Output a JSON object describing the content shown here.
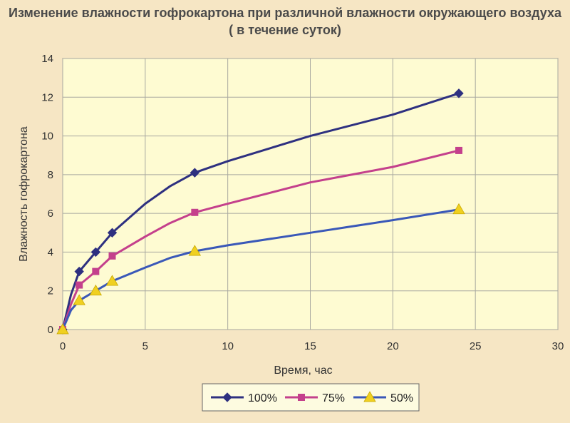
{
  "chart_data": {
    "type": "line",
    "title": "Изменение влажности гофрокартона при различной влажности окружающего воздуха",
    "subtitle": "( в течение суток)",
    "xlabel": "Время, час",
    "ylabel": "Влажность гофрокартона",
    "xlim": [
      0,
      30
    ],
    "ylim": [
      0,
      14
    ],
    "xticks": [
      "0",
      "5",
      "10",
      "15",
      "20",
      "25",
      "30"
    ],
    "yticks": [
      "0",
      "2",
      "4",
      "6",
      "8",
      "10",
      "12",
      "14"
    ],
    "grid": true,
    "legend_position": "bottom",
    "series": [
      {
        "name": "100%",
        "color": "#2e3080",
        "marker": "diamond",
        "markers": [
          [
            0,
            0
          ],
          [
            1,
            3
          ],
          [
            2,
            4
          ],
          [
            3,
            5
          ],
          [
            8,
            8.1
          ],
          [
            24,
            12.2
          ]
        ],
        "curve": [
          [
            0,
            0
          ],
          [
            0.5,
            1.8
          ],
          [
            1,
            3
          ],
          [
            2,
            4
          ],
          [
            3,
            5
          ],
          [
            5,
            6.5
          ],
          [
            6.5,
            7.4
          ],
          [
            8,
            8.1
          ],
          [
            10,
            8.7
          ],
          [
            15,
            10
          ],
          [
            20,
            11.1
          ],
          [
            24,
            12.2
          ]
        ]
      },
      {
        "name": "75%",
        "color": "#c4408c",
        "marker": "square",
        "markers": [
          [
            0,
            0
          ],
          [
            1,
            2.3
          ],
          [
            2,
            3
          ],
          [
            3,
            3.8
          ],
          [
            8,
            6.05
          ],
          [
            24,
            9.25
          ]
        ],
        "curve": [
          [
            0,
            0
          ],
          [
            0.5,
            1.3
          ],
          [
            1,
            2.3
          ],
          [
            2,
            3
          ],
          [
            3,
            3.8
          ],
          [
            5,
            4.8
          ],
          [
            6.5,
            5.5
          ],
          [
            8,
            6.05
          ],
          [
            10,
            6.5
          ],
          [
            15,
            7.6
          ],
          [
            20,
            8.4
          ],
          [
            24,
            9.25
          ]
        ]
      },
      {
        "name": "50%",
        "color": "#3a58b8",
        "marker": "triangle",
        "marker_color": "#f0d020",
        "markers": [
          [
            0,
            0
          ],
          [
            1,
            1.5
          ],
          [
            2,
            2
          ],
          [
            3,
            2.5
          ],
          [
            8,
            4.05
          ],
          [
            24,
            6.2
          ]
        ],
        "curve": [
          [
            0,
            0
          ],
          [
            0.5,
            1
          ],
          [
            1,
            1.5
          ],
          [
            2,
            2
          ],
          [
            3,
            2.5
          ],
          [
            5,
            3.2
          ],
          [
            6.5,
            3.7
          ],
          [
            8,
            4.05
          ],
          [
            10,
            4.35
          ],
          [
            15,
            5
          ],
          [
            20,
            5.65
          ],
          [
            24,
            6.2
          ]
        ]
      }
    ]
  },
  "colors": {
    "plot_background": "#fefbd2",
    "page_background": "#f6e6c4",
    "grid": "#a8a8a0"
  }
}
